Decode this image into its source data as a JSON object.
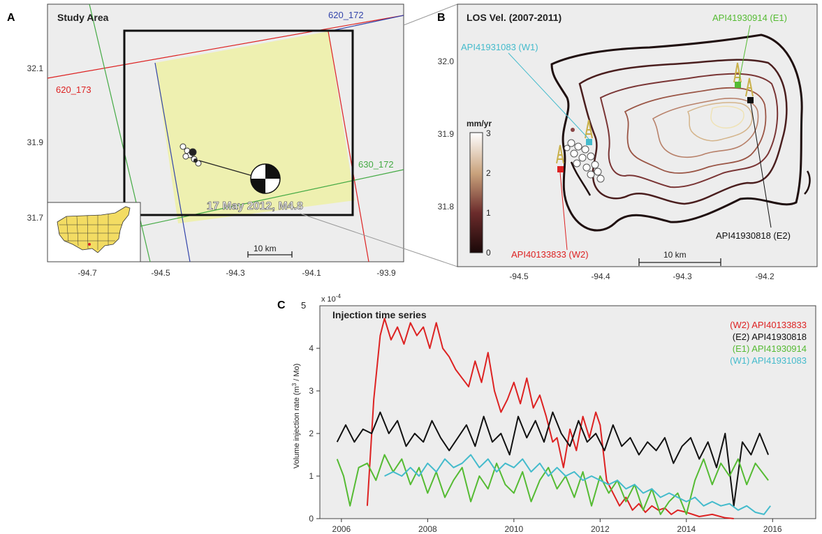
{
  "panels": {
    "A": {
      "letter": "A",
      "title": "Study Area",
      "x_ticks": [
        "-94.7",
        "-94.5",
        "-94.3",
        "-94.1",
        "-93.9"
      ],
      "y_ticks": [
        "32.1",
        "31.9",
        "31.7"
      ],
      "track_labels": {
        "t620_172": "620_172",
        "t620_173": "620_173",
        "t630_172": "630_172"
      },
      "event_label": "17 May 2012, M4.8",
      "scale_label": "10 km",
      "colors": {
        "frame_fill": "#ededed",
        "swath_fill": "#eef0b0",
        "track_blue": "#3344aa",
        "track_red": "#dd2222",
        "track_green": "#44aa44"
      }
    },
    "B": {
      "letter": "B",
      "title": "LOS Vel. (2007-2011)",
      "x_ticks": [
        "-94.5",
        "-94.4",
        "-94.3",
        "-94.2"
      ],
      "y_ticks": [
        "32.0",
        "31.9",
        "31.8"
      ],
      "colorbar": {
        "unit": "mm/yr",
        "ticks": [
          "3",
          "2",
          "1",
          "0"
        ],
        "min": 0,
        "max": 3
      },
      "scale_label": "10 km",
      "wells": {
        "w1": {
          "label": "API41931083 (W1)",
          "color": "#44bbcc"
        },
        "w2": {
          "label": "API40133833 (W2)",
          "color": "#dd2222"
        },
        "e1": {
          "label": "API41930914 (E1)",
          "color": "#55bb33"
        },
        "e2": {
          "label": "API41930818 (E2)",
          "color": "#111111"
        }
      }
    },
    "C": {
      "letter": "C",
      "title": "Injection time series",
      "exponent": "x 10",
      "exponent_power": "-4"
    }
  },
  "chart_data": [
    {
      "type": "line",
      "panel": "C",
      "title": "Injection time series",
      "xlabel": "",
      "ylabel": "Volume injection rate (m3 / Mo)",
      "ylabel_parts": {
        "main": "Volume injection rate (m",
        "sup": "3",
        "tail": " / Mo)"
      },
      "y_multiplier": "x 10^-4",
      "xlim": [
        2005.5,
        2017.0
      ],
      "ylim": [
        0,
        5
      ],
      "x_ticks": [
        2006,
        2008,
        2010,
        2012,
        2014,
        2016
      ],
      "y_ticks": [
        0,
        1,
        2,
        3,
        4,
        5
      ],
      "legend_position": "top-right",
      "series": [
        {
          "name": "(W2) API40133833",
          "color": "#dd2222",
          "x": [
            2006.6,
            2006.75,
            2006.9,
            2007.0,
            2007.15,
            2007.3,
            2007.45,
            2007.6,
            2007.75,
            2007.9,
            2008.05,
            2008.2,
            2008.35,
            2008.5,
            2008.65,
            2008.8,
            2008.95,
            2009.1,
            2009.25,
            2009.4,
            2009.55,
            2009.7,
            2009.85,
            2010.0,
            2010.15,
            2010.3,
            2010.45,
            2010.6,
            2010.75,
            2010.9,
            2011.0,
            2011.15,
            2011.3,
            2011.45,
            2011.6,
            2011.75,
            2011.9,
            2012.0,
            2012.15,
            2012.3,
            2012.45,
            2012.6,
            2012.75,
            2012.9,
            2013.05,
            2013.2,
            2013.35,
            2013.5,
            2013.65,
            2013.8,
            2014.0,
            2014.3,
            2014.6,
            2014.9,
            2015.1
          ],
          "y": [
            0.3,
            2.8,
            4.3,
            4.7,
            4.2,
            4.5,
            4.1,
            4.6,
            4.3,
            4.5,
            4.0,
            4.6,
            4.0,
            3.8,
            3.5,
            3.3,
            3.1,
            3.7,
            3.2,
            3.9,
            3.0,
            2.5,
            2.8,
            3.2,
            2.7,
            3.3,
            2.6,
            2.9,
            2.4,
            1.8,
            1.9,
            1.2,
            2.1,
            1.6,
            2.4,
            1.9,
            2.5,
            2.2,
            0.9,
            0.6,
            0.3,
            0.5,
            0.2,
            0.35,
            0.15,
            0.3,
            0.2,
            0.25,
            0.1,
            0.2,
            0.15,
            0.05,
            0.1,
            0.02,
            0.0
          ]
        },
        {
          "name": "(E2) API41930818",
          "color": "#111111",
          "x": [
            2005.9,
            2006.1,
            2006.3,
            2006.5,
            2006.7,
            2006.9,
            2007.1,
            2007.3,
            2007.5,
            2007.7,
            2007.9,
            2008.1,
            2008.3,
            2008.5,
            2008.7,
            2008.9,
            2009.1,
            2009.3,
            2009.5,
            2009.7,
            2009.9,
            2010.1,
            2010.3,
            2010.5,
            2010.7,
            2010.9,
            2011.1,
            2011.3,
            2011.5,
            2011.7,
            2011.9,
            2012.1,
            2012.3,
            2012.5,
            2012.7,
            2012.9,
            2013.1,
            2013.3,
            2013.5,
            2013.7,
            2013.9,
            2014.1,
            2014.3,
            2014.5,
            2014.7,
            2014.9,
            2015.1,
            2015.3,
            2015.5,
            2015.7,
            2015.9
          ],
          "y": [
            1.8,
            2.2,
            1.8,
            2.1,
            2.0,
            2.5,
            2.0,
            2.3,
            1.7,
            2.0,
            1.8,
            2.3,
            1.9,
            1.6,
            1.9,
            2.2,
            1.7,
            2.4,
            1.8,
            2.0,
            1.5,
            2.4,
            1.9,
            2.3,
            1.8,
            2.5,
            2.0,
            1.7,
            2.3,
            1.8,
            2.0,
            1.6,
            2.2,
            1.7,
            1.9,
            1.5,
            1.8,
            1.6,
            1.9,
            1.3,
            1.7,
            1.9,
            1.4,
            1.8,
            1.2,
            2.0,
            0.3,
            1.8,
            1.5,
            2.0,
            1.5
          ]
        },
        {
          "name": "(E1) API41930914",
          "color": "#55bb33",
          "x": [
            2005.9,
            2006.05,
            2006.2,
            2006.4,
            2006.6,
            2006.8,
            2007.0,
            2007.2,
            2007.4,
            2007.6,
            2007.8,
            2008.0,
            2008.2,
            2008.4,
            2008.6,
            2008.8,
            2009.0,
            2009.2,
            2009.4,
            2009.6,
            2009.8,
            2010.0,
            2010.2,
            2010.4,
            2010.6,
            2010.8,
            2011.0,
            2011.2,
            2011.4,
            2011.6,
            2011.8,
            2012.0,
            2012.2,
            2012.4,
            2012.6,
            2012.8,
            2013.0,
            2013.2,
            2013.4,
            2013.6,
            2013.8,
            2014.0,
            2014.2,
            2014.4,
            2014.6,
            2014.8,
            2015.0,
            2015.2,
            2015.4,
            2015.6,
            2015.9
          ],
          "y": [
            1.4,
            1.0,
            0.3,
            1.2,
            1.3,
            0.9,
            1.5,
            1.1,
            1.4,
            0.8,
            1.2,
            0.6,
            1.1,
            0.5,
            0.9,
            1.2,
            0.4,
            1.0,
            0.7,
            1.3,
            0.8,
            0.6,
            1.1,
            0.4,
            0.9,
            1.2,
            0.7,
            1.0,
            0.5,
            1.1,
            0.3,
            1.0,
            0.6,
            0.9,
            0.4,
            0.8,
            0.2,
            0.7,
            0.1,
            0.4,
            0.6,
            0.1,
            0.9,
            1.4,
            0.8,
            1.3,
            1.0,
            1.4,
            0.8,
            1.3,
            0.9
          ]
        },
        {
          "name": "(W1) API41931083",
          "color": "#44bbcc",
          "x": [
            2007.0,
            2007.2,
            2007.4,
            2007.6,
            2007.8,
            2008.0,
            2008.2,
            2008.4,
            2008.6,
            2008.8,
            2009.0,
            2009.2,
            2009.4,
            2009.6,
            2009.8,
            2010.0,
            2010.2,
            2010.4,
            2010.6,
            2010.8,
            2011.0,
            2011.2,
            2011.4,
            2011.6,
            2011.8,
            2012.0,
            2012.2,
            2012.4,
            2012.6,
            2012.8,
            2013.0,
            2013.2,
            2013.4,
            2013.6,
            2013.8,
            2014.0,
            2014.2,
            2014.4,
            2014.6,
            2014.8,
            2015.0,
            2015.2,
            2015.4,
            2015.6,
            2015.8,
            2015.95
          ],
          "y": [
            1.0,
            1.1,
            1.0,
            1.2,
            1.0,
            1.3,
            1.1,
            1.4,
            1.2,
            1.3,
            1.5,
            1.2,
            1.4,
            1.1,
            1.3,
            1.2,
            1.4,
            1.1,
            1.3,
            1.0,
            1.2,
            1.0,
            1.1,
            0.9,
            1.0,
            0.9,
            0.8,
            0.9,
            0.7,
            0.8,
            0.6,
            0.7,
            0.5,
            0.6,
            0.5,
            0.4,
            0.5,
            0.3,
            0.4,
            0.3,
            0.35,
            0.2,
            0.3,
            0.15,
            0.1,
            0.3
          ]
        }
      ]
    }
  ]
}
